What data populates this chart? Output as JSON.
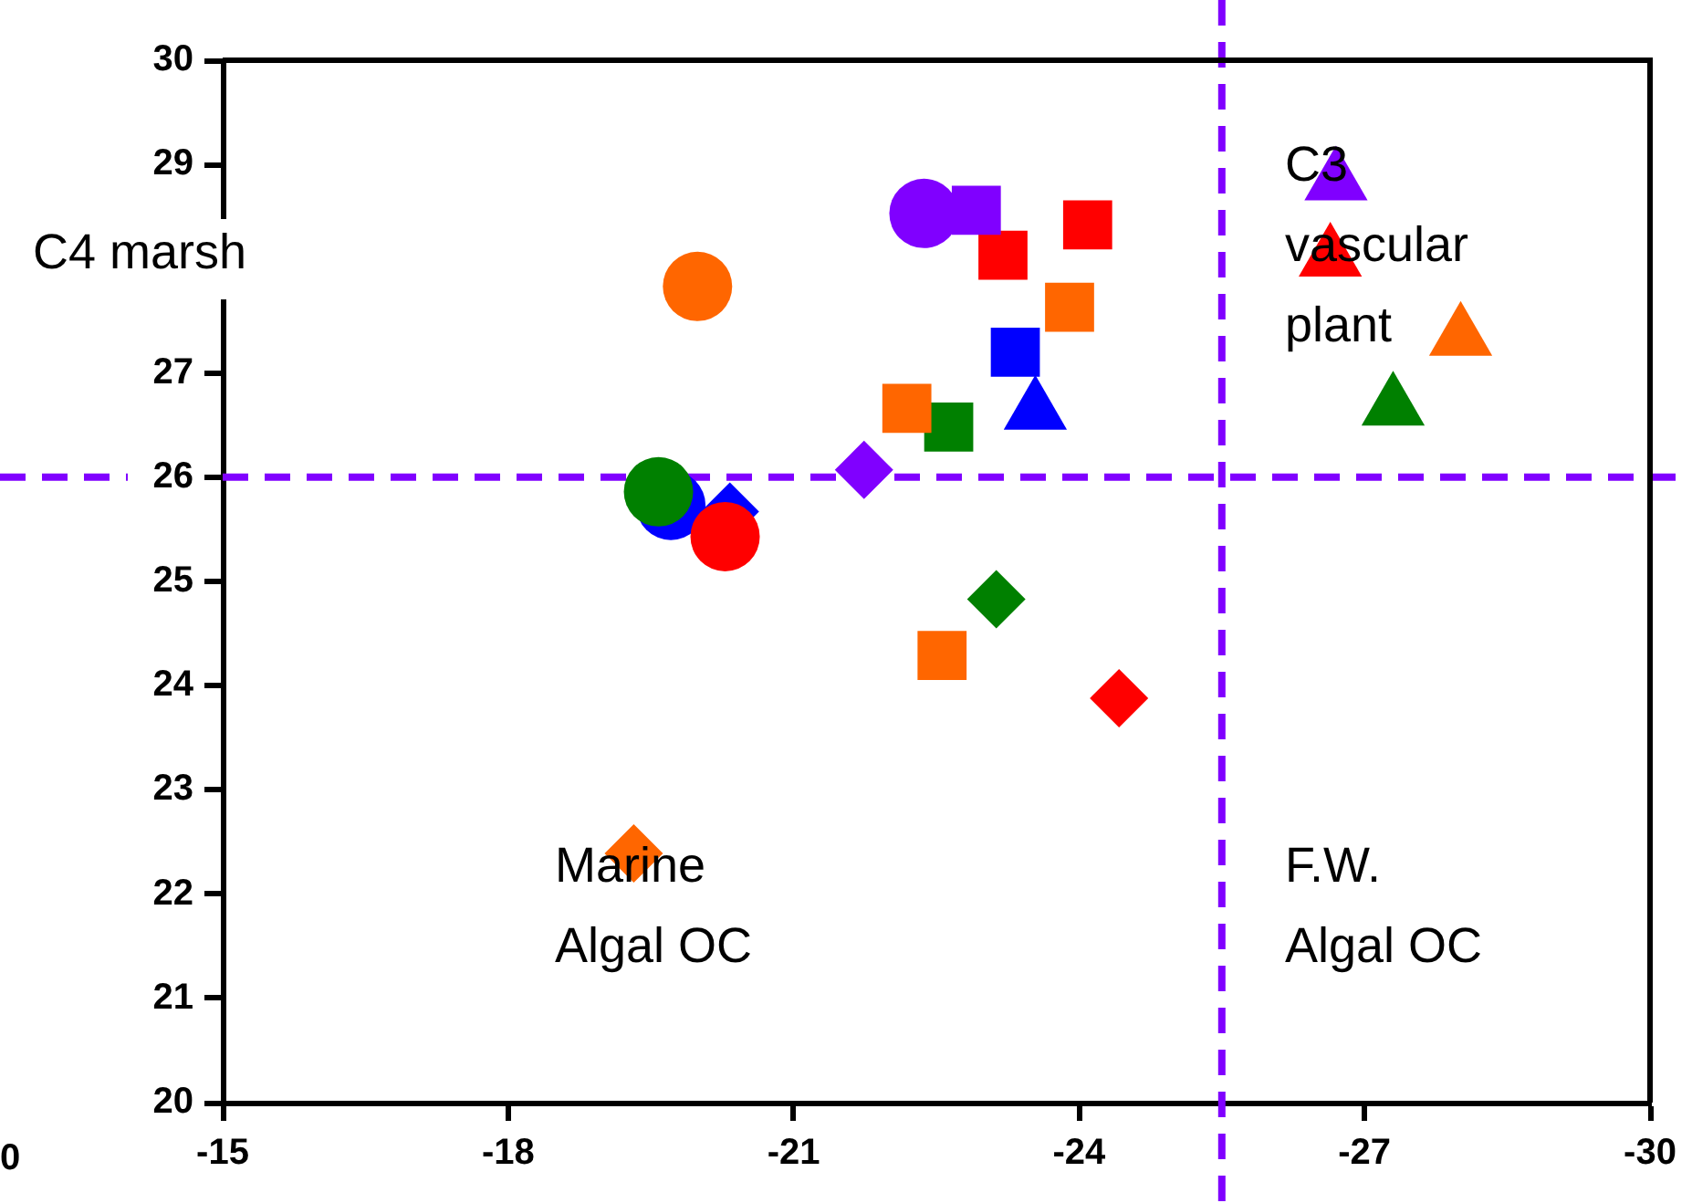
{
  "chart_data": {
    "type": "scatter",
    "xlim": [
      -15,
      -30
    ],
    "ylim": [
      20,
      30
    ],
    "xticks": [
      -15,
      -18,
      -21,
      -24,
      -27,
      -30
    ],
    "yticks": [
      20,
      21,
      22,
      23,
      24,
      25,
      26,
      27,
      {
        "value": 28,
        "label": null
      },
      29,
      30
    ],
    "grid": false,
    "ref_lines": [
      {
        "axis": "x",
        "value": -25.5,
        "color": "#8000ff",
        "line_style": "dashed"
      },
      {
        "axis": "y",
        "value": 26,
        "color": "#8000ff",
        "line_style": "dashed"
      }
    ],
    "annotations": [
      "C4 marsh",
      "0",
      "C3 vascular plant",
      "Marine Algal OC",
      "F.W. Algal OC"
    ],
    "series": [
      {
        "color": "#ff0000",
        "marker": "circle",
        "x": [
          -20.28
        ],
        "values": [
          25.43
        ]
      },
      {
        "color": "#008000",
        "marker": "circle",
        "x": [
          -19.58
        ],
        "values": [
          25.86
        ]
      },
      {
        "color": "#8000ff",
        "marker": "circle",
        "x": [
          -22.37
        ],
        "values": [
          28.53
        ]
      },
      {
        "color": "#8000ff",
        "marker": "square",
        "x": [
          -22.92
        ],
        "values": [
          28.56
        ]
      },
      {
        "color": "#8000ff",
        "marker": "diamond",
        "x": [
          -21.74
        ],
        "values": [
          26.07
        ]
      },
      {
        "color": "#8000ff",
        "marker": "triangle",
        "x": [
          -26.7
        ],
        "values": [
          28.83
        ]
      },
      {
        "color": "#ff0000",
        "marker": "square",
        "x": [
          -23.2,
          -24.09
        ],
        "values": [
          28.13,
          28.42
        ]
      },
      {
        "color": "#ff0000",
        "marker": "diamond",
        "x": [
          -24.42
        ],
        "values": [
          23.88
        ]
      },
      {
        "color": "#ff0000",
        "marker": "triangle",
        "x": [
          -26.64
        ],
        "values": [
          28.1
        ]
      },
      {
        "color": "#ff6600",
        "marker": "circle",
        "x": [
          -19.99
        ],
        "values": [
          27.83
        ]
      },
      {
        "color": "#ff6600",
        "marker": "square",
        "x": [
          -23.9,
          -22.19,
          -22.56
        ],
        "values": [
          27.63,
          26.66,
          24.29
        ]
      },
      {
        "color": "#ff6600",
        "marker": "diamond",
        "x": [
          -19.32
        ],
        "values": [
          22.39
        ]
      },
      {
        "color": "#ff6600",
        "marker": "triangle",
        "x": [
          -28.01
        ],
        "values": [
          27.34
        ]
      },
      {
        "color": "#008000",
        "marker": "square",
        "x": [
          -22.63
        ],
        "values": [
          26.48
        ]
      },
      {
        "color": "#008000",
        "marker": "diamond",
        "x": [
          -23.13
        ],
        "values": [
          24.83
        ]
      },
      {
        "color": "#008000",
        "marker": "triangle",
        "x": [
          -27.3
        ],
        "values": [
          26.67
        ]
      },
      {
        "color": "#0000ff",
        "marker": "square",
        "x": [
          -23.33
        ],
        "values": [
          27.2
        ]
      },
      {
        "color": "#0000ff",
        "marker": "triangle",
        "x": [
          -23.54
        ],
        "values": [
          26.63
        ]
      },
      {
        "color": "#0000ff",
        "marker": "diamond",
        "x": [
          -20.33
        ],
        "values": [
          25.67
        ]
      },
      {
        "color": "#0000ff",
        "marker": "circle",
        "x": [
          -19.71
        ],
        "values": [
          25.73
        ]
      }
    ]
  }
}
